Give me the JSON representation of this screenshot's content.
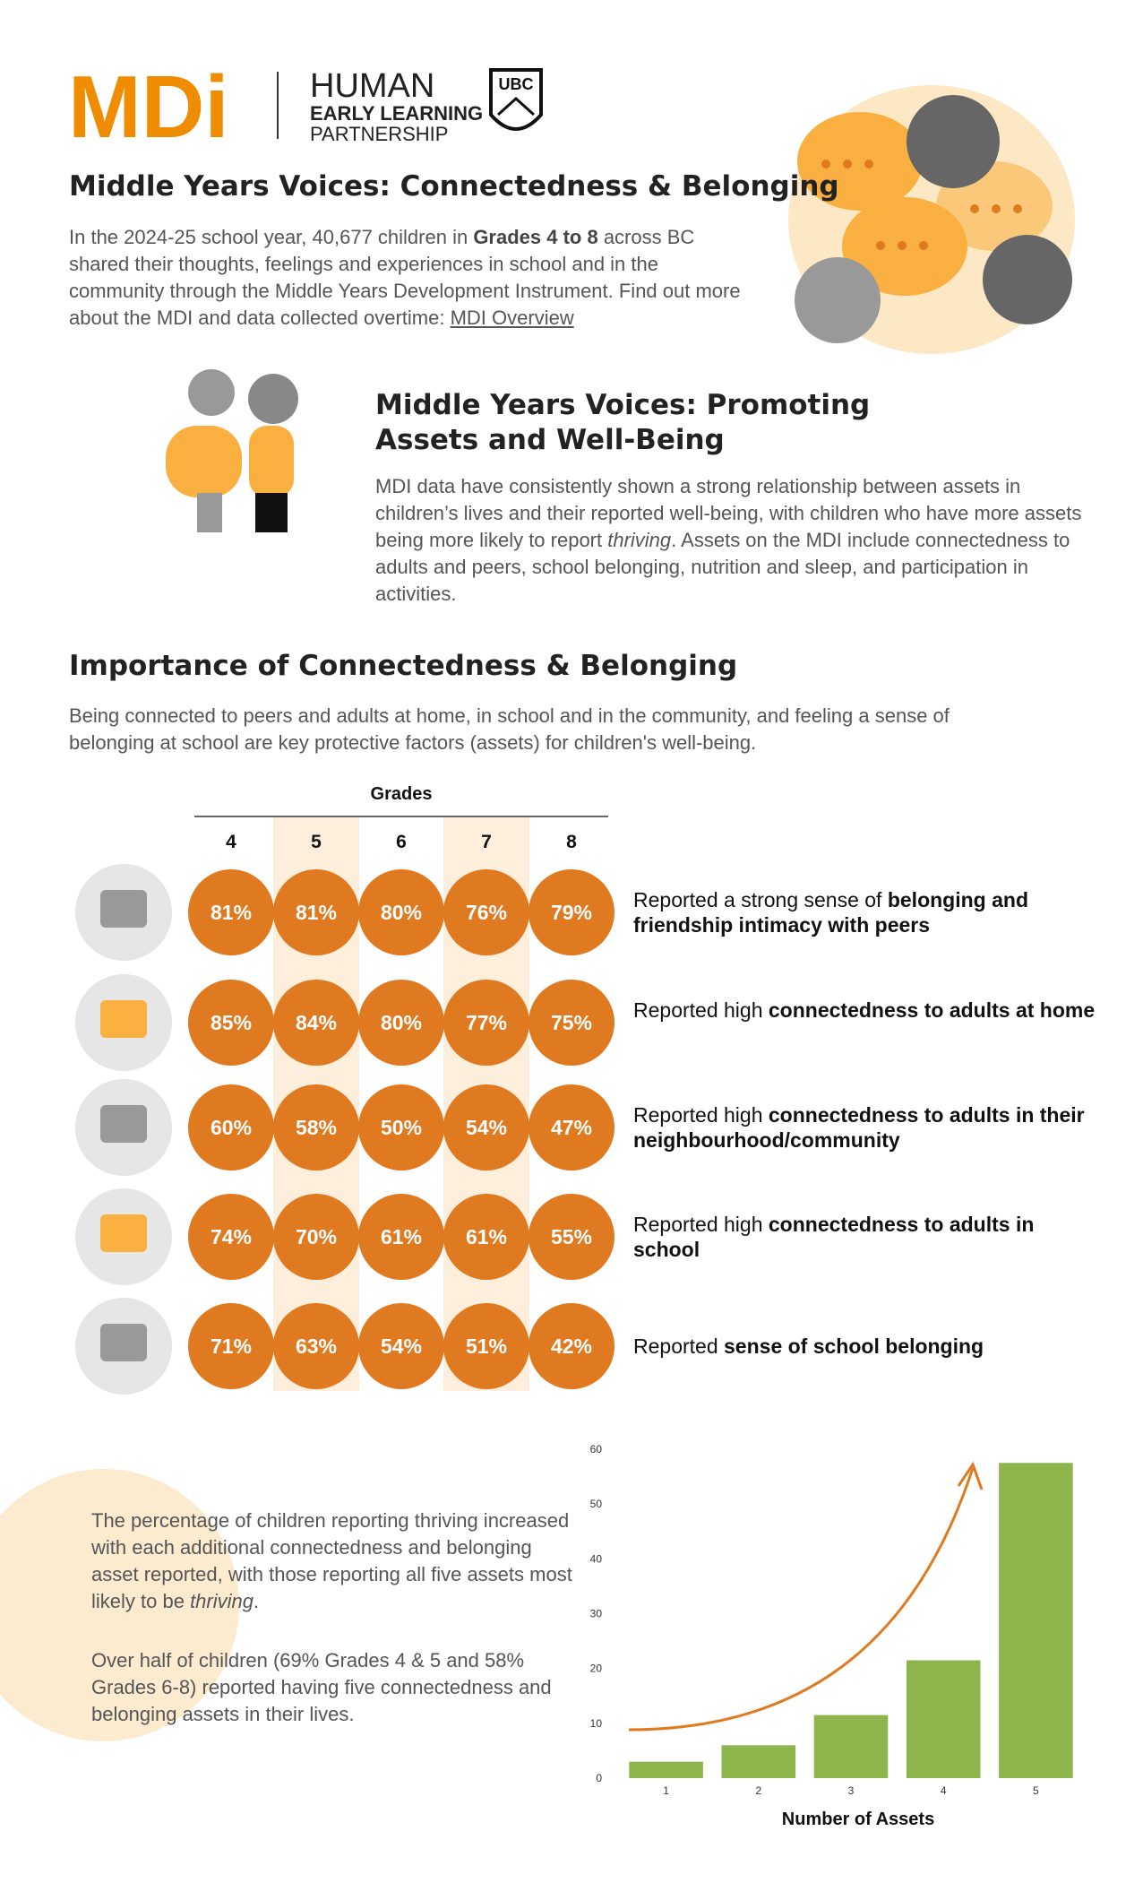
{
  "header": {
    "logo": "MDi",
    "partner": [
      "HUMAN",
      "EARLY LEARNING",
      "PARTNERSHIP"
    ],
    "ubc": "UBC"
  },
  "intro": {
    "title": "Middle Years Voices: Connectedness & Belonging",
    "text": [
      "In the 2024-25 school year, 40,677 children in ",
      "Grades 4 to 8",
      " across BC shared their thoughts, feelings and experiences in school and in the community through the Middle Years Development Instrument. Find out more about the MDI and data collected overtime: ",
      "MDI Overview"
    ]
  },
  "assets": {
    "title": "Middle Years Voices: Promoting Assets and Well-Being",
    "text": [
      "MDI data have consistently shown a strong relationship between assets in children’s lives and their reported well-being, with children who have more assets being more likely to report ",
      "thriving",
      ". Assets on the MDI include connectedness to adults and peers, school belonging, nutrition and sleep, and participation in activities."
    ]
  },
  "importance": {
    "title": "Importance of Connectedness & Belonging",
    "text": "Being connected to peers and adults at home, in school and in the community, and feeling a sense of belonging at school are key protective factors (assets) for children's well-being."
  },
  "table": {
    "header": "Grades",
    "grades": [
      "4",
      "5",
      "6",
      "7",
      "8"
    ],
    "rows": [
      {
        "values": [
          "81%",
          "81%",
          "80%",
          "76%",
          "79%"
        ],
        "label": [
          "Reported a strong sense of ",
          "belonging and friendship intimacy with peers"
        ]
      },
      {
        "values": [
          "85%",
          "84%",
          "80%",
          "77%",
          "75%"
        ],
        "label": [
          "Reported high ",
          "connectedness to adults at home"
        ]
      },
      {
        "values": [
          "60%",
          "58%",
          "50%",
          "54%",
          "47%"
        ],
        "label": [
          "Reported high ",
          "connectedness to adults in their neighbourhood/community"
        ]
      },
      {
        "values": [
          "74%",
          "70%",
          "61%",
          "61%",
          "55%"
        ],
        "label": [
          "Reported high ",
          "connectedness to adults in school"
        ]
      },
      {
        "values": [
          "71%",
          "63%",
          "54%",
          "51%",
          "42%"
        ],
        "label": [
          "Reported ",
          "sense of school belonging"
        ]
      }
    ]
  },
  "thriving": {
    "p1": [
      "The percentage of children reporting thriving increased with each additional connectedness and belonging asset reported, with those reporting all five assets most likely to be ",
      "thriving",
      "."
    ],
    "p2": "Over half of children (69% Grades 4 & 5 and 58% Grades 6-8) reported having five connectedness and belonging assets in their lives."
  },
  "chart_data": {
    "type": "bar",
    "categories": [
      "1",
      "2",
      "3",
      "4",
      "5"
    ],
    "values": [
      3,
      6,
      11.5,
      21.5,
      57.5
    ],
    "color": "#8db54b",
    "xlabel": "Number of Assets",
    "ylim": [
      0,
      60
    ],
    "yticks": [
      0,
      10,
      20,
      30,
      40,
      50,
      60
    ],
    "grid": false
  }
}
